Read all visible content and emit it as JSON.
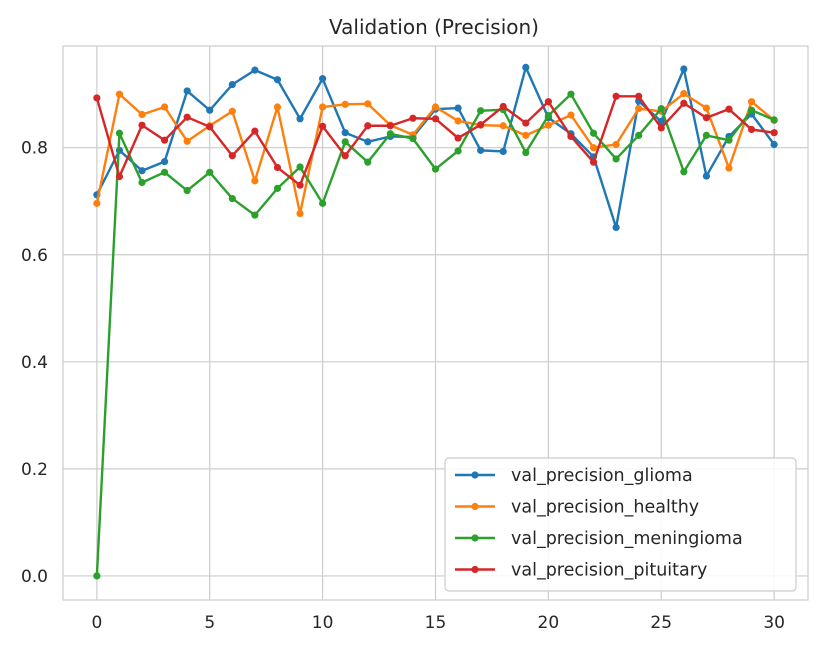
{
  "chart_data": {
    "type": "line",
    "title": "Validation (Precision)",
    "xlabel": "",
    "ylabel": "",
    "xlim": [
      -1.5,
      31.5
    ],
    "ylim": [
      -0.045,
      0.99
    ],
    "x_ticks": [
      0,
      5,
      10,
      15,
      20,
      25,
      30
    ],
    "y_ticks": [
      0.0,
      0.2,
      0.4,
      0.6,
      0.8
    ],
    "y_tick_labels": [
      "0.0",
      "0.2",
      "0.4",
      "0.6",
      "0.8"
    ],
    "grid": true,
    "legend_position": "bottom-right",
    "x": [
      0,
      1,
      2,
      3,
      4,
      5,
      6,
      7,
      8,
      9,
      10,
      11,
      12,
      13,
      14,
      15,
      16,
      17,
      18,
      19,
      20,
      21,
      22,
      23,
      24,
      25,
      26,
      27,
      28,
      29,
      30
    ],
    "series": [
      {
        "name": "val_precision_glioma",
        "color": "#1f77b4",
        "values": [
          0.712,
          0.795,
          0.757,
          0.774,
          0.906,
          0.87,
          0.918,
          0.945,
          0.927,
          0.854,
          0.929,
          0.828,
          0.811,
          0.821,
          0.82,
          0.872,
          0.874,
          0.795,
          0.793,
          0.95,
          0.856,
          0.826,
          0.783,
          0.651,
          0.887,
          0.849,
          0.947,
          0.747,
          0.821,
          0.863,
          0.806
        ]
      },
      {
        "name": "val_precision_healthy",
        "color": "#ff7f0e",
        "values": [
          0.696,
          0.9,
          0.862,
          0.876,
          0.812,
          0.841,
          0.868,
          0.738,
          0.876,
          0.677,
          0.876,
          0.881,
          0.882,
          0.842,
          0.824,
          0.876,
          0.85,
          0.842,
          0.841,
          0.823,
          0.842,
          0.861,
          0.8,
          0.806,
          0.873,
          0.868,
          0.901,
          0.874,
          0.762,
          0.886,
          0.851
        ]
      },
      {
        "name": "val_precision_meningioma",
        "color": "#2ca02c",
        "values": [
          0.0,
          0.827,
          0.735,
          0.754,
          0.72,
          0.754,
          0.705,
          0.674,
          0.724,
          0.764,
          0.696,
          0.811,
          0.773,
          0.826,
          0.817,
          0.76,
          0.794,
          0.869,
          0.871,
          0.791,
          0.86,
          0.9,
          0.827,
          0.779,
          0.823,
          0.873,
          0.755,
          0.823,
          0.814,
          0.87,
          0.852
        ]
      },
      {
        "name": "val_precision_pituitary",
        "color": "#d62728",
        "values": [
          0.893,
          0.746,
          0.842,
          0.814,
          0.857,
          0.839,
          0.785,
          0.831,
          0.763,
          0.73,
          0.84,
          0.785,
          0.841,
          0.841,
          0.855,
          0.854,
          0.818,
          0.843,
          0.877,
          0.846,
          0.886,
          0.821,
          0.773,
          0.896,
          0.896,
          0.837,
          0.883,
          0.856,
          0.872,
          0.834,
          0.828
        ]
      }
    ]
  }
}
